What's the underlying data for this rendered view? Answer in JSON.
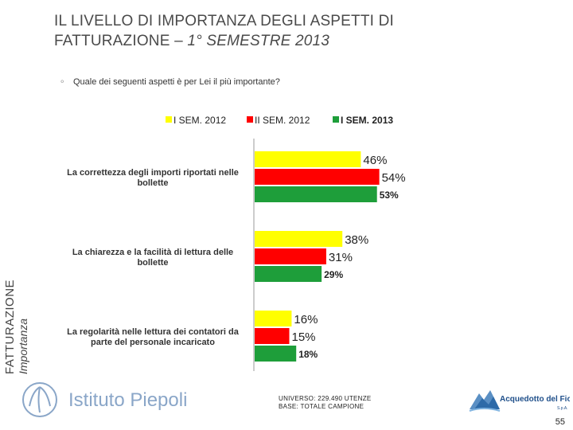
{
  "title": {
    "line1": "IL LIVELLO DI IMPORTANZA DEGLI ASPETTI DI",
    "line2_normal": "FATTURAZIONE – ",
    "line2_italic": "1° SEMESTRE 2013"
  },
  "side_label": {
    "main": "FATTURAZIONE",
    "sub": "Importanza"
  },
  "question": "Quale dei seguenti aspetti è per Lei il più importante?",
  "chart_data": {
    "type": "bar",
    "orientation": "horizontal",
    "categories": [
      [
        "La correttezza degli importi riportati nelle",
        "bollette"
      ],
      [
        "La chiarezza e la facilità di lettura delle",
        "bollette"
      ],
      [
        "La regolarità nelle lettura dei contatori da",
        "parte del personale incaricato"
      ]
    ],
    "series": [
      {
        "name": "I SEM. 2012",
        "color": "#ffff00",
        "values": [
          46,
          38,
          16
        ],
        "labels": [
          "46%",
          "38%",
          "16%"
        ]
      },
      {
        "name": "II SEM. 2012",
        "color": "#ff0000",
        "values": [
          54,
          31,
          15
        ],
        "labels": [
          "54%",
          "31%",
          "15%"
        ]
      },
      {
        "name": "I SEM. 2013",
        "color": "#1e9e3a",
        "values": [
          53,
          29,
          18
        ],
        "labels": [
          "53%",
          "29%",
          "18%"
        ]
      }
    ],
    "legend_position": "top",
    "xlim": [
      0,
      60
    ]
  },
  "footer": {
    "brand": "Istituto Piepoli",
    "universe_line1": "UNIVERSO: 229.490 UTENZE",
    "universe_line2": "BASE: TOTALE CAMPIONE",
    "partner": "Acquedotto del Fiora",
    "partner_sub": "S.p.A.",
    "page_number": "55"
  }
}
